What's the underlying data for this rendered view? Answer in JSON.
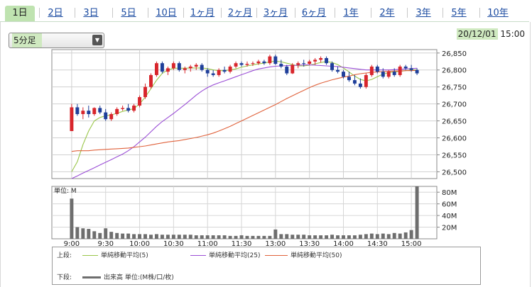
{
  "tabs": [
    "1日",
    "2日",
    "3日",
    "5日",
    "10日",
    "1ヶ月",
    "2ヶ月",
    "3ヶ月",
    "6ヶ月",
    "1年",
    "2年",
    "3年",
    "5年",
    "10年"
  ],
  "active_tab": 0,
  "interval_select": {
    "value": "5分足",
    "arrow_icon": "dropdown-arrow-icon"
  },
  "datetime": {
    "date": "20/12/01",
    "time": "15:00"
  },
  "price_chart": {
    "y_ticks": [
      "26,850",
      "26,800",
      "26,750",
      "26,700",
      "26,650",
      "26,600",
      "26,550",
      "26,500"
    ],
    "x_ticks": [
      "9:00",
      "9:30",
      "10:00",
      "10:30",
      "11:00",
      "11:30",
      "13:00",
      "13:30",
      "14:00",
      "14:30",
      "15:00"
    ]
  },
  "volume_chart": {
    "unit_label": "単位: M",
    "y_ticks": [
      "80M",
      "60M",
      "40M",
      "20M"
    ]
  },
  "legend": {
    "upper_label": "上段:",
    "lower_label": "下段:",
    "ma5": "単純移動平均(5)",
    "ma25": "単純移動平均(25)",
    "ma50": "単純移動平均(50)",
    "volume": "出来高 単位:(M株/口/枚)"
  },
  "colors": {
    "up": "#d8262c",
    "down": "#1f3f9a",
    "ma5": "#9ac64a",
    "ma25": "#9b4fd6",
    "ma50": "#e0623c",
    "volume": "#6e6e6e",
    "active_tab": "#bfe3b0"
  },
  "chart_data": [
    {
      "type": "candlestick",
      "y_range": [
        26480,
        26860
      ],
      "candles": [
        [
          26620,
          26700,
          26620,
          26690
        ],
        [
          26690,
          26700,
          26665,
          26670
        ],
        [
          26670,
          26690,
          26655,
          26680
        ],
        [
          26680,
          26695,
          26660,
          26670
        ],
        [
          26670,
          26690,
          26665,
          26688
        ],
        [
          26688,
          26695,
          26670,
          26675
        ],
        [
          26675,
          26685,
          26650,
          26655
        ],
        [
          26655,
          26675,
          26650,
          26670
        ],
        [
          26670,
          26690,
          26665,
          26685
        ],
        [
          26685,
          26695,
          26680,
          26688
        ],
        [
          26688,
          26700,
          26675,
          26680
        ],
        [
          26680,
          26700,
          26675,
          26695
        ],
        [
          26695,
          26725,
          26690,
          26720
        ],
        [
          26720,
          26760,
          26715,
          26750
        ],
        [
          26750,
          26790,
          26745,
          26785
        ],
        [
          26785,
          26825,
          26780,
          26820
        ],
        [
          26820,
          26825,
          26790,
          26795
        ],
        [
          26795,
          26810,
          26785,
          26805
        ],
        [
          26805,
          26825,
          26800,
          26820
        ],
        [
          26820,
          26825,
          26795,
          26800
        ],
        [
          26800,
          26810,
          26790,
          26805
        ],
        [
          26805,
          26815,
          26795,
          26810
        ],
        [
          26810,
          26820,
          26800,
          26815
        ],
        [
          26815,
          26820,
          26795,
          26800
        ],
        [
          26800,
          26805,
          26780,
          26790
        ],
        [
          26790,
          26800,
          26780,
          26785
        ],
        [
          26785,
          26805,
          26780,
          26800
        ],
        [
          26800,
          26810,
          26790,
          26795
        ],
        [
          26795,
          26815,
          26790,
          26810
        ],
        [
          26810,
          26825,
          26805,
          26820
        ],
        [
          26820,
          26825,
          26810,
          26815
        ],
        [
          26815,
          26825,
          26810,
          26818
        ],
        [
          26818,
          26825,
          26812,
          26820
        ],
        [
          26820,
          26830,
          26815,
          26825
        ],
        [
          26825,
          26830,
          26815,
          26820
        ],
        [
          26820,
          26845,
          26815,
          26840
        ],
        [
          26840,
          26845,
          26815,
          26818
        ],
        [
          26818,
          26830,
          26805,
          26810
        ],
        [
          26810,
          26815,
          26785,
          26790
        ],
        [
          26790,
          26820,
          26788,
          26815
        ],
        [
          26815,
          26825,
          26805,
          26820
        ],
        [
          26820,
          26830,
          26810,
          26818
        ],
        [
          26818,
          26830,
          26815,
          26825
        ],
        [
          26825,
          26835,
          26815,
          26830
        ],
        [
          26830,
          26840,
          26822,
          26835
        ],
        [
          26835,
          26840,
          26815,
          26820
        ],
        [
          26820,
          26825,
          26795,
          26800
        ],
        [
          26800,
          26810,
          26790,
          26795
        ],
        [
          26795,
          26800,
          26775,
          26780
        ],
        [
          26780,
          26795,
          26765,
          26770
        ],
        [
          26770,
          26785,
          26755,
          26760
        ],
        [
          26760,
          26775,
          26745,
          26750
        ],
        [
          26750,
          26790,
          26745,
          26785
        ],
        [
          26785,
          26815,
          26780,
          26810
        ],
        [
          26810,
          26815,
          26790,
          26795
        ],
        [
          26795,
          26805,
          26775,
          26780
        ],
        [
          26780,
          26800,
          26775,
          26795
        ],
        [
          26795,
          26805,
          26780,
          26785
        ],
        [
          26785,
          26815,
          26780,
          26810
        ],
        [
          26810,
          26815,
          26800,
          26805
        ],
        [
          26805,
          26815,
          26795,
          26800
        ],
        [
          26800,
          26805,
          26785,
          26790
        ]
      ],
      "ma5": [
        26500,
        26530,
        26580,
        26620,
        26650,
        26660,
        26665,
        26668,
        26672,
        26678,
        26682,
        26686,
        26700,
        26720,
        26745,
        26770,
        26790,
        26800,
        26805,
        26805,
        26805,
        26806,
        26806,
        26806,
        26804,
        26800,
        26798,
        26798,
        26800,
        26803,
        26808,
        26812,
        26815,
        26818,
        26820,
        26824,
        26826,
        26824,
        26820,
        26816,
        26812,
        26812,
        26814,
        26818,
        26822,
        26825,
        26822,
        26816,
        26806,
        26794,
        26782,
        26772,
        26768,
        26772,
        26780,
        26788,
        26792,
        26794,
        26796,
        26798,
        26800,
        26800
      ],
      "ma25": [
        26480,
        26488,
        26496,
        26504,
        26512,
        26520,
        26528,
        26536,
        26544,
        26552,
        26562,
        26574,
        26588,
        26602,
        26618,
        26634,
        26648,
        26660,
        26672,
        26685,
        26698,
        26712,
        26726,
        26738,
        26748,
        26756,
        26762,
        26768,
        26774,
        26780,
        26786,
        26792,
        26798,
        26803,
        26806,
        26809,
        26811,
        26812,
        26813,
        26813,
        26814,
        26815,
        26815,
        26814,
        26813,
        26812,
        26811,
        26810,
        26808,
        26806,
        26804,
        26802,
        26800,
        26800,
        26800,
        26800,
        26800,
        26801,
        26802,
        26803,
        26804,
        26805
      ],
      "ma50": [
        26560,
        26562,
        26562,
        26562,
        26564,
        26565,
        26566,
        26567,
        26568,
        26569,
        26570,
        26572,
        26574,
        26576,
        26579,
        26582,
        26585,
        26588,
        26590,
        26592,
        26595,
        26598,
        26601,
        26605,
        26609,
        26614,
        26620,
        26627,
        26634,
        26642,
        26650,
        26658,
        26666,
        26674,
        26682,
        26690,
        26698,
        26707,
        26716,
        26724,
        26732,
        26740,
        26748,
        26755,
        26761,
        26766,
        26771,
        26775,
        26779,
        26782,
        26786,
        26789,
        26791,
        26793,
        26794,
        26795,
        26796,
        26797,
        26797,
        26798,
        26798,
        26799
      ]
    },
    {
      "type": "bar",
      "title": "volume",
      "unit": "M",
      "y_range": [
        0,
        90
      ],
      "values": [
        69,
        20,
        18,
        17,
        13,
        10,
        18,
        12,
        10,
        9,
        9,
        8,
        8,
        8,
        7,
        8,
        7,
        7,
        7,
        7,
        7,
        7,
        6,
        6,
        6,
        6,
        6,
        6,
        5,
        5,
        6,
        5,
        5,
        5,
        5,
        5,
        16,
        8,
        8,
        7,
        7,
        7,
        6,
        6,
        6,
        6,
        7,
        6,
        6,
        6,
        6,
        7,
        8,
        9,
        8,
        9,
        8,
        10,
        9,
        11,
        15,
        90
      ]
    }
  ]
}
